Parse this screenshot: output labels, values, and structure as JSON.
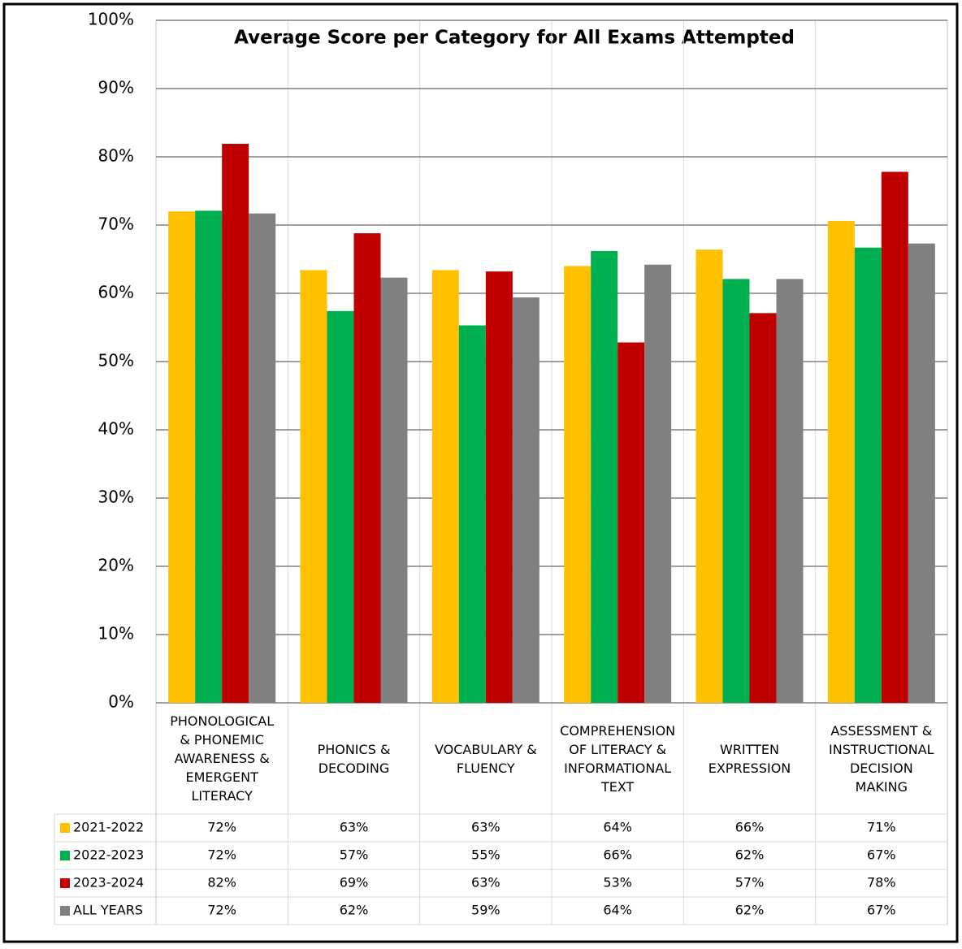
{
  "chart_data": {
    "type": "bar",
    "title": "Average Score per Category for All Exams Attempted",
    "categories": [
      "PHONOLOGICAL & PHONEMIC AWARENESS & EMERGENT LITERACY",
      "PHONICS & DECODING",
      "VOCABULARY & FLUENCY",
      "COMPREHENSION OF LITERACY & INFORMATIONAL TEXT",
      "WRITTEN EXPRESSION",
      "ASSESSMENT & INSTRUCTIONAL DECISION MAKING"
    ],
    "series": [
      {
        "name": "2021-2022",
        "color": "#ffc000",
        "values": [
          72,
          63.4,
          63.4,
          64,
          66.4,
          70.6
        ],
        "value_labels": [
          "72%",
          "63%",
          "63%",
          "64%",
          "66%",
          "71%"
        ]
      },
      {
        "name": "2022-2023",
        "color": "#00b050",
        "values": [
          72.1,
          57.4,
          55.3,
          66.2,
          62.1,
          66.7
        ],
        "value_labels": [
          "72%",
          "57%",
          "55%",
          "66%",
          "62%",
          "67%"
        ]
      },
      {
        "name": "2023-2024",
        "color": "#c00000",
        "values": [
          81.9,
          68.8,
          63.2,
          52.8,
          57.1,
          77.8
        ],
        "value_labels": [
          "82%",
          "69%",
          "63%",
          "53%",
          "57%",
          "78%"
        ]
      },
      {
        "name": "ALL YEARS",
        "color": "#808080",
        "values": [
          71.7,
          62.3,
          59.4,
          64.2,
          62.1,
          67.3
        ],
        "value_labels": [
          "72%",
          "62%",
          "59%",
          "64%",
          "62%",
          "67%"
        ]
      }
    ],
    "ylim": [
      0,
      100
    ],
    "yticks": [
      {
        "value": 0,
        "label": "0%"
      },
      {
        "value": 10,
        "label": "10%"
      },
      {
        "value": 20,
        "label": "20%"
      },
      {
        "value": 30,
        "label": "30%"
      },
      {
        "value": 40,
        "label": "40%"
      },
      {
        "value": 50,
        "label": "50%"
      },
      {
        "value": 60,
        "label": "60%"
      },
      {
        "value": 70,
        "label": "70%"
      },
      {
        "value": 80,
        "label": "80%"
      },
      {
        "value": 90,
        "label": "90%"
      },
      {
        "value": 100,
        "label": "100%"
      }
    ],
    "grid": true
  }
}
